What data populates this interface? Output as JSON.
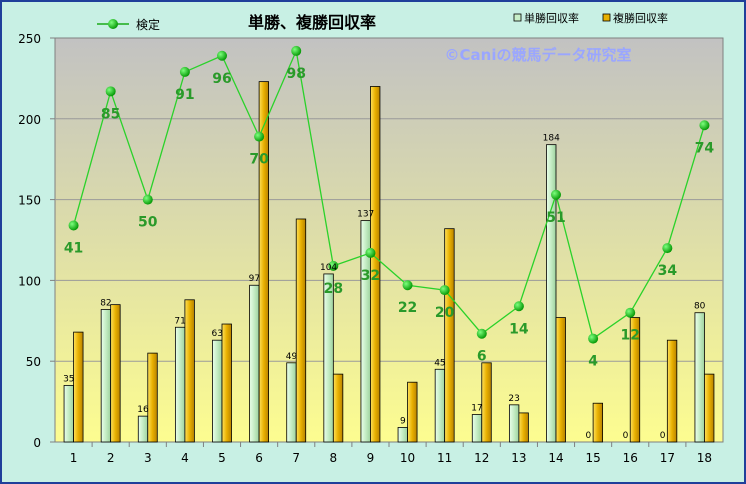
{
  "chart_data": {
    "type": "bar",
    "title": "単勝、複勝回収率",
    "watermark": "©Caniの競馬データ研究室",
    "categories": [
      "1",
      "2",
      "3",
      "4",
      "5",
      "6",
      "7",
      "8",
      "9",
      "10",
      "11",
      "12",
      "13",
      "14",
      "15",
      "16",
      "17",
      "18"
    ],
    "ylim": [
      0,
      250
    ],
    "yticks": [
      0,
      50,
      100,
      150,
      200,
      250
    ],
    "grid": true,
    "legend_position": "top",
    "series": [
      {
        "name": "単勝回収率",
        "type": "bar",
        "color": "#c8f0c8",
        "values": [
          35,
          82,
          16,
          71,
          63,
          97,
          49,
          104,
          137,
          9,
          45,
          17,
          23,
          184,
          0,
          0,
          0,
          80
        ],
        "labels": [
          "35",
          "82",
          "16",
          "71",
          "63",
          "97",
          "49",
          "104",
          "137",
          "9",
          "45",
          "17",
          "23",
          "184",
          "0",
          "0",
          "0",
          "80"
        ]
      },
      {
        "name": "複勝回収率",
        "type": "bar",
        "color": "#e8b000",
        "values": [
          68,
          85,
          55,
          88,
          73,
          223,
          138,
          42,
          220,
          37,
          132,
          49,
          18,
          77,
          24,
          77,
          63,
          42
        ]
      },
      {
        "name": "検定",
        "type": "line",
        "color": "#1aaa1a",
        "values": [
          134,
          217,
          150,
          229,
          239,
          189,
          242,
          109,
          117,
          97,
          94,
          67,
          84,
          153,
          64,
          80,
          120,
          196
        ],
        "labels": [
          "41",
          "85",
          "50",
          "91",
          "96",
          "70",
          "98",
          "28",
          "32",
          "22",
          "20",
          "6",
          "14",
          "51",
          "4",
          "12",
          "34",
          "74"
        ]
      }
    ]
  }
}
